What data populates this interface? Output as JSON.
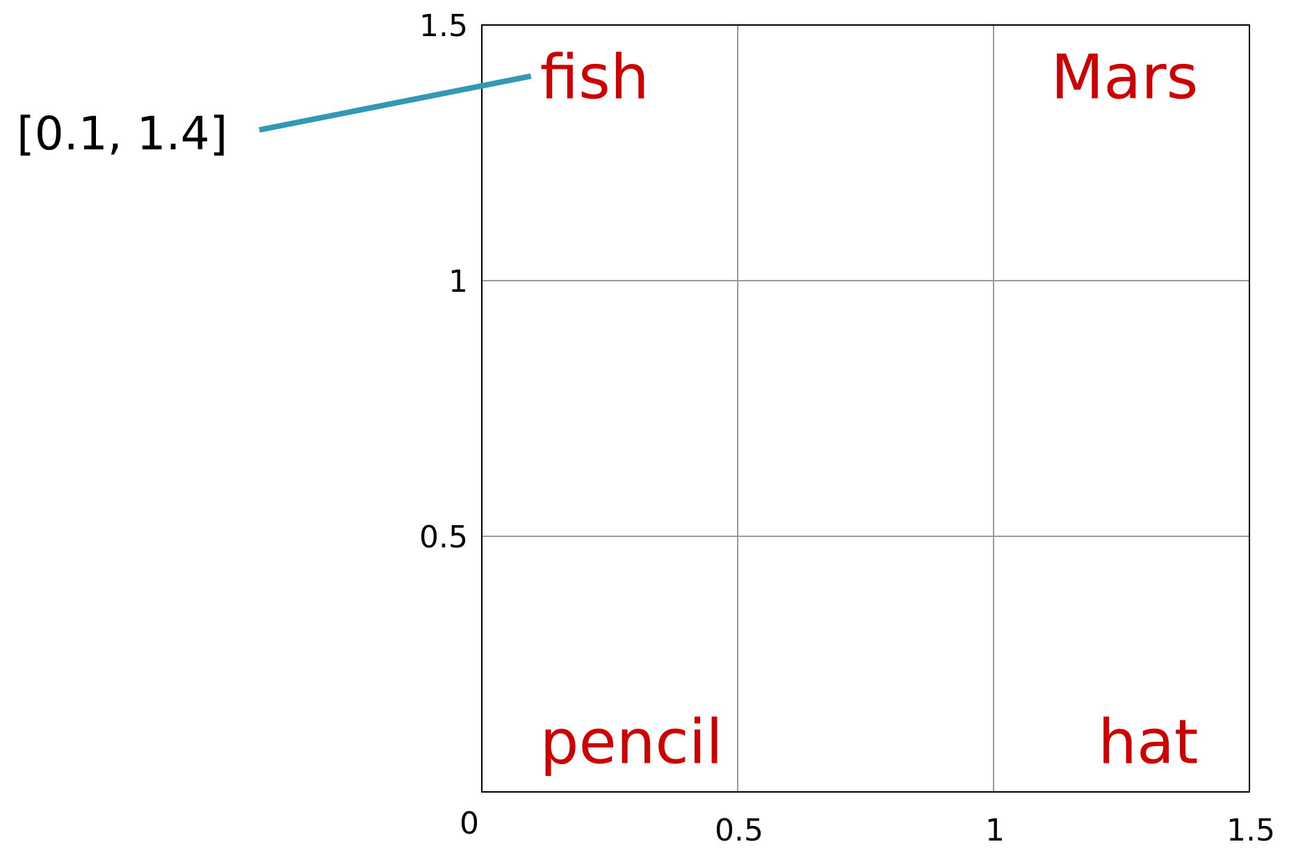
{
  "chart_data": {
    "type": "scatter",
    "title": "",
    "xlabel": "",
    "ylabel": "",
    "xlim": [
      0,
      1.5
    ],
    "ylim": [
      0,
      1.5
    ],
    "grid": true,
    "x_ticks": [
      {
        "value": 0,
        "label": "0"
      },
      {
        "value": 0.5,
        "label": "0.5"
      },
      {
        "value": 1,
        "label": "1"
      },
      {
        "value": 1.5,
        "label": "1.5"
      }
    ],
    "y_ticks": [
      {
        "value": 0.5,
        "label": "0.5"
      },
      {
        "value": 1,
        "label": "1"
      },
      {
        "value": 1.5,
        "label": "1.5"
      }
    ],
    "points": [
      {
        "label": "fish",
        "x": 0.1,
        "y": 1.4
      },
      {
        "label": "Mars",
        "x": 1.4,
        "y": 1.4
      },
      {
        "label": "pencil",
        "x": 0.1,
        "y": 0.1
      },
      {
        "label": "hat",
        "x": 1.4,
        "y": 0.1
      }
    ],
    "annotation": {
      "text": "[0.1, 1.4]",
      "target": "fish",
      "x": 0.1,
      "y": 1.4
    },
    "colors": {
      "label": "#cc0000",
      "leader_line": "#3399b3",
      "grid": "#999999",
      "frame": "#000000"
    }
  }
}
